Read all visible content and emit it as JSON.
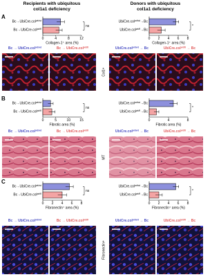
{
  "headers": [
    "Recipients with ubiquitous col1a1 deficiency",
    "Donors with ubiquitous col1a1 deficiency"
  ],
  "panels": [
    "A",
    "B",
    "C"
  ],
  "side_labels": [
    "Col1+",
    "MT",
    "Fibronectin+"
  ],
  "image_titles": [
    [
      [
        "Bc → UbiCre.col",
        "wt/wt"
      ],
      [
        "Bc → UbiCre.col",
        "wt/fl"
      ],
      [
        "UbiCre.col",
        "wt/wt",
        " → Bc"
      ],
      [
        "UbiCre.col",
        "wt/fl",
        " → Bc"
      ]
    ],
    [
      [
        "Bc → UbiCre.col",
        "wt/wt"
      ],
      [
        "Bc → UbiCre.col",
        "wt/fl"
      ],
      [
        "UbiCre.col",
        "wt/wt",
        " → Bc"
      ],
      [
        "UbiCre.col",
        "wt/fl",
        " → Bc"
      ]
    ],
    [
      [
        "Bc → UbiCre.col",
        "wt/wt"
      ],
      [
        "Bc → UbiCre.col",
        "wt/fl"
      ],
      [
        "UbiCre.col",
        "wt/wt",
        " → Bc"
      ],
      [
        "UbiCre.col",
        "wt/fl",
        " → Bc"
      ]
    ]
  ],
  "title_colors": [
    "#4a4fc4",
    "#e05a5a"
  ],
  "chart_data": [
    {
      "type": "bar",
      "categories": [
        [
          "Bc→UbiCre.col",
          "wt/wt"
        ],
        [
          "Bc→UbiCre.col",
          "wt/fl"
        ]
      ],
      "values": [
        5.5,
        5.0
      ],
      "errors": [
        1.2,
        1.0
      ],
      "colors": [
        "#8d90dc",
        "#f4a4a4"
      ],
      "xlim": [
        0,
        12
      ],
      "xticks": [
        0,
        4,
        8,
        12
      ],
      "xlabel": "Collagen-1⁺ area (%)",
      "annotation": "ns"
    },
    {
      "type": "bar",
      "categories": [
        [
          "UbiCre.col",
          "wt/wt",
          "→Bc"
        ],
        [
          "UbiCre.col",
          "wt/fl",
          "→Bc"
        ]
      ],
      "values": [
        5.5,
        2.5
      ],
      "errors": [
        0.6,
        0.8
      ],
      "colors": [
        "#8d90dc",
        "#f4a4a4"
      ],
      "xlim": [
        0,
        8
      ],
      "xticks": [
        0,
        2,
        4,
        6,
        8
      ],
      "xlabel": "Collagen-1⁺ area (%)",
      "annotation": "*"
    },
    {
      "type": "bar",
      "categories": [
        [
          "Bc→UbiCre.col",
          "wt/wt"
        ],
        [
          "Bc→UbiCre.col",
          "wt/fl"
        ]
      ],
      "values": [
        3,
        3.5
      ],
      "errors": [
        1.0,
        1.2
      ],
      "colors": [
        "#8d90dc",
        "#f4a4a4"
      ],
      "xlim": [
        0,
        15
      ],
      "xticks": [
        0,
        5,
        10,
        15
      ],
      "xlabel": "Fibrotic area (%)",
      "annotation": "ns"
    },
    {
      "type": "bar",
      "categories": [
        [
          "UbiCre.col",
          "wt/wt",
          "→Bc"
        ],
        [
          "UbiCre.col",
          "wt/fl",
          "→Bc"
        ]
      ],
      "values": [
        5,
        1.5
      ],
      "errors": [
        0.8,
        0.5
      ],
      "colors": [
        "#8d90dc",
        "#f4a4a4"
      ],
      "xlim": [
        0,
        8
      ],
      "xticks": [
        0,
        4,
        8
      ],
      "xlabel": "Fibrotic area (%)",
      "annotation": "*"
    },
    {
      "type": "bar",
      "categories": [
        [
          "Bc→UbiCre.col",
          "wt/wt"
        ],
        [
          "Bc→UbiCre.col",
          "wt/fl"
        ]
      ],
      "values": [
        5.5,
        4
      ],
      "errors": [
        0.8,
        0.9
      ],
      "colors": [
        "#8d90dc",
        "#f4a4a4"
      ],
      "xlim": [
        0,
        8
      ],
      "xticks": [
        0,
        2,
        4,
        6,
        8
      ],
      "xlabel": "Fibronectin⁺ area (%)",
      "annotation": "ns"
    },
    {
      "type": "bar",
      "categories": [
        [
          "UbiCre.col",
          "wt/wt",
          "→Bc"
        ],
        [
          "UbiCre.col",
          "wt/fl",
          "→Bc"
        ]
      ],
      "values": [
        5.5,
        2
      ],
      "errors": [
        0.6,
        0.7
      ],
      "colors": [
        "#8d90dc",
        "#f4a4a4"
      ],
      "xlim": [
        0,
        8
      ],
      "xticks": [
        0,
        2,
        4,
        6,
        8
      ],
      "xlabel": "Fibronectin⁺ area (%)",
      "annotation": "*"
    }
  ]
}
